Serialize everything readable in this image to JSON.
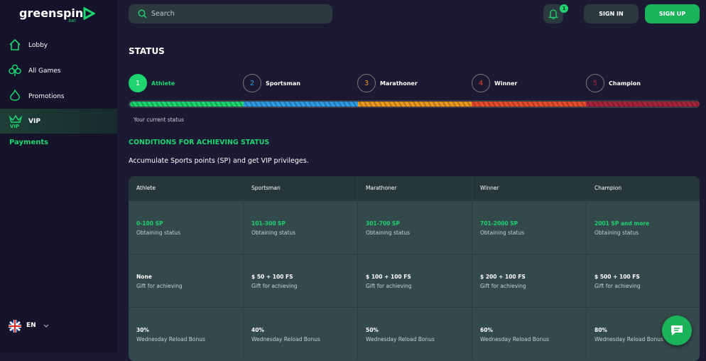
{
  "logo": {
    "name": "greenspin",
    "suffix": ".bet"
  },
  "sidebar": {
    "items": [
      "Lobby",
      "All Games",
      "Promotions",
      "VIP"
    ],
    "payments": "Payments",
    "language": "EN"
  },
  "header": {
    "search": "Search",
    "notifications": "1",
    "sign_in": "SIGN IN",
    "sign_up": "SIGN UP"
  },
  "status": {
    "title": "STATUS",
    "current": "Your current status",
    "steps": [
      {
        "number": "1",
        "name": "Athlete",
        "color": "#1ed46f"
      },
      {
        "number": "2",
        "name": "Sportsman",
        "color": "#2e9be6"
      },
      {
        "number": "3",
        "name": "Marathoner",
        "color": "#f0961e"
      },
      {
        "number": "4",
        "name": "Winner",
        "color": "#e84c2b"
      },
      {
        "number": "5",
        "name": "Champion",
        "color": "#a8243e"
      }
    ]
  },
  "conditions": {
    "title": "CONDITIONS FOR ACHIEVING STATUS",
    "text": "Accumulate Sports points (SP) and get VIP privileges.",
    "table": {
      "header": [
        "Athlete",
        "Sportsman",
        "Marathoner",
        "Winner",
        "Champion"
      ],
      "rows": [
        [
          {
            "value": "0-100 SP",
            "note": "Obtaining status"
          },
          {
            "value": "101-300 SP",
            "note": "Obtaining status"
          },
          {
            "value": "301-700 SP",
            "note": "Obtaining status"
          },
          {
            "value": "701-2000 SP",
            "note": "Obtaining status"
          },
          {
            "value": "2001 SP and more",
            "note": "Obtaining status"
          }
        ],
        [
          {
            "value": "None",
            "note": "Gift for achieving"
          },
          {
            "value": "$ 50 + 100 FS",
            "note": "Gift for achieving"
          },
          {
            "value": "$ 100 + 100 FS",
            "note": "Gift for achieving"
          },
          {
            "value": "$ 200 + 100 FS",
            "note": "Gift for achieving"
          },
          {
            "value": "$ 500 + 100 FS",
            "note": "Gift for achieving"
          }
        ],
        [
          {
            "value": "30%",
            "note": "Wednesday Reload Bonus"
          },
          {
            "value": "40%",
            "note": "Wednesday Reload Bonus"
          },
          {
            "value": "50%",
            "note": "Wednesday Reload Bonus"
          },
          {
            "value": "60%",
            "note": "Wednesday Reload Bonus"
          },
          {
            "value": "80%",
            "note": "Wednesday Reload Bonus"
          }
        ]
      ]
    }
  }
}
